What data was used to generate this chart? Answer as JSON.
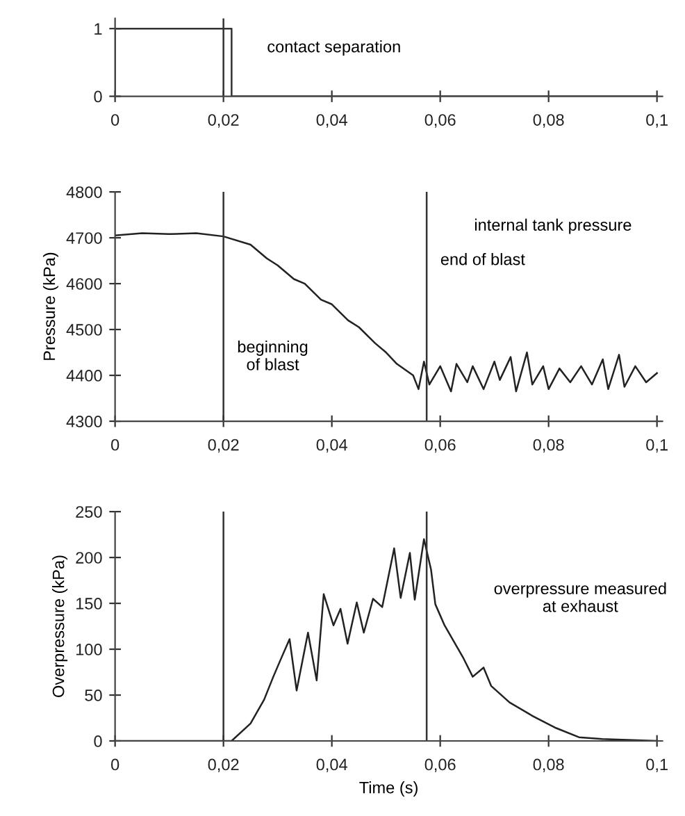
{
  "chart_data": [
    {
      "type": "line",
      "annotations": [
        "contact separation"
      ],
      "series": [
        {
          "color": "#333333",
          "x": [
            0,
            0,
            0.0215,
            0.0215,
            0.1
          ],
          "values": [
            0,
            1,
            1,
            0,
            0
          ]
        }
      ],
      "xlim": [
        0,
        0.101
      ],
      "ylim": [
        0,
        1.15
      ],
      "xticks": [
        0,
        {
          "value": 0.02,
          "label": "0,02"
        },
        {
          "value": 0.04,
          "label": "0,04"
        },
        {
          "value": 0.06,
          "label": "0,06"
        },
        {
          "value": 0.08,
          "label": "0,08"
        },
        {
          "value": 0.1,
          "label": "0,1"
        }
      ],
      "yticks": [
        0,
        1
      ],
      "ref_lines": [
        {
          "axis": "x",
          "value": 0.02,
          "color": "#333333"
        }
      ]
    },
    {
      "type": "line",
      "ylabel": "Pressure (kPa)",
      "annotations": [
        "internal tank pressure"
      ],
      "series": [
        {
          "color": "#222222",
          "x": [
            0,
            0.005,
            0.01,
            0.015,
            0.02,
            0.025,
            0.028,
            0.03,
            0.033,
            0.035,
            0.038,
            0.04,
            0.043,
            0.045,
            0.048,
            0.05,
            0.052,
            0.055,
            0.056,
            0.057,
            0.058,
            0.06,
            0.062,
            0.063,
            0.065,
            0.066,
            0.068,
            0.07,
            0.071,
            0.073,
            0.074,
            0.076,
            0.077,
            0.079,
            0.08,
            0.082,
            0.084,
            0.086,
            0.088,
            0.09,
            0.091,
            0.093,
            0.094,
            0.096,
            0.098,
            0.1
          ],
          "values": [
            4705,
            4710,
            4708,
            4710,
            4703,
            4685,
            4655,
            4640,
            4610,
            4600,
            4565,
            4555,
            4520,
            4505,
            4470,
            4450,
            4425,
            4400,
            4370,
            4430,
            4380,
            4420,
            4365,
            4425,
            4385,
            4420,
            4370,
            4430,
            4390,
            4440,
            4365,
            4450,
            4380,
            4420,
            4370,
            4415,
            4385,
            4420,
            4380,
            4435,
            4370,
            4445,
            4375,
            4420,
            4385,
            4405
          ]
        }
      ],
      "xlim": [
        0,
        0.101
      ],
      "ylim": [
        4300,
        4800
      ],
      "xticks": [
        0,
        {
          "value": 0.02,
          "label": "0,02"
        },
        {
          "value": 0.04,
          "label": "0,04"
        },
        {
          "value": 0.06,
          "label": "0,06"
        },
        {
          "value": 0.08,
          "label": "0,08"
        },
        {
          "value": 0.1,
          "label": "0,1"
        }
      ],
      "yticks": [
        4300,
        4400,
        4500,
        4600,
        4700,
        4800
      ],
      "ref_lines": [
        {
          "axis": "x",
          "value": 0.02,
          "label": "beginning\nof blast",
          "color": "#333333"
        },
        {
          "axis": "x",
          "value": 0.0575,
          "label": "end of blast",
          "color": "#333333"
        }
      ]
    },
    {
      "type": "line",
      "xlabel": "Time (s)",
      "ylabel": "Overpressure (kPa)",
      "annotations": [
        "overpressure measured\nat exhaust"
      ],
      "series": [
        {
          "color": "#222222",
          "x": [
            0,
            0.01,
            0.0215,
            0.025,
            0.0275,
            0.0292,
            0.0305,
            0.0322,
            0.0335,
            0.0356,
            0.0372,
            0.0385,
            0.0403,
            0.0416,
            0.0429,
            0.0446,
            0.0459,
            0.0476,
            0.0493,
            0.0515,
            0.0527,
            0.0544,
            0.0553,
            0.057,
            0.0583,
            0.0591,
            0.0608,
            0.0643,
            0.066,
            0.068,
            0.0694,
            0.0728,
            0.0771,
            0.0814,
            0.0856,
            0.0899,
            0.1
          ],
          "values": [
            0,
            0,
            0,
            19,
            45,
            70,
            88,
            111,
            55,
            118,
            66,
            160,
            126,
            144,
            106,
            151,
            118,
            155,
            146,
            210,
            156,
            205,
            154,
            220,
            187,
            149,
            126,
            90,
            70,
            80,
            60,
            42,
            27,
            14,
            4,
            2,
            0
          ]
        }
      ],
      "xlim": [
        0,
        0.101
      ],
      "ylim": [
        0,
        250
      ],
      "xticks": [
        0,
        {
          "value": 0.02,
          "label": "0,02"
        },
        {
          "value": 0.04,
          "label": "0,04"
        },
        {
          "value": 0.06,
          "label": "0,06"
        },
        {
          "value": 0.08,
          "label": "0,08"
        },
        {
          "value": 0.1,
          "label": "0,1"
        }
      ],
      "yticks": [
        0,
        50,
        100,
        150,
        200,
        250
      ],
      "ref_lines": [
        {
          "axis": "x",
          "value": 0.02,
          "color": "#333333"
        },
        {
          "axis": "x",
          "value": 0.0575,
          "color": "#333333"
        }
      ]
    }
  ]
}
